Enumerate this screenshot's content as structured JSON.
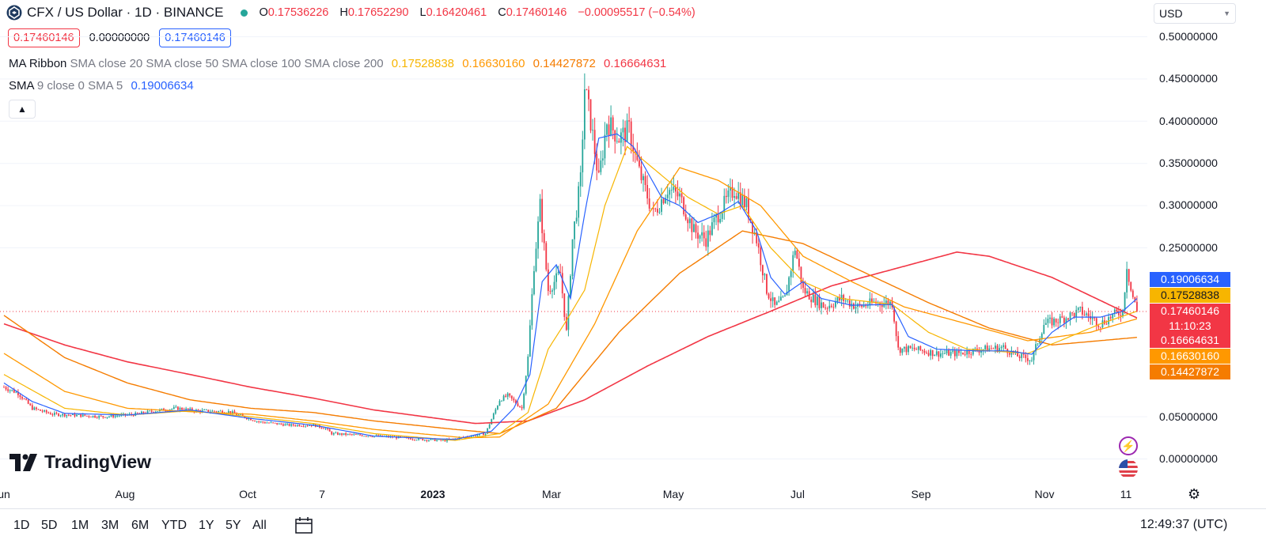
{
  "header": {
    "symbol_title": "CFX / US Dollar · 1D · BINANCE",
    "o_label": "O",
    "o_value": "0.17536226",
    "h_label": "H",
    "h_value": "0.17652290",
    "l_label": "L",
    "l_value": "0.16420461",
    "c_label": "C",
    "c_value": "0.17460146",
    "change": "−0.00095517 (−0.54%)"
  },
  "price_boxes": {
    "sell": "0.17460146",
    "spread": "0.00000000",
    "buy": "0.17460146"
  },
  "indicators": [
    {
      "name": "MA Ribbon",
      "params": "SMA close 20 SMA close 50 SMA close 100 SMA close 200",
      "values": [
        "0.17528838",
        "0.16630160",
        "0.14427872",
        "0.16664631"
      ]
    },
    {
      "name": "SMA",
      "params": "9 close 0 SMA 5",
      "values": [
        "0.19006634"
      ]
    }
  ],
  "currency_select": "USD",
  "y_axis": {
    "ticks": [
      "0.50000000",
      "0.45000000",
      "0.40000000",
      "0.35000000",
      "0.30000000",
      "0.25000000",
      "0.05000000",
      "0.00000000"
    ]
  },
  "x_axis": {
    "labels": [
      "un",
      "Aug",
      "Oct",
      "7",
      "2023",
      "Mar",
      "May",
      "Jul",
      "Sep",
      "Nov",
      "11"
    ]
  },
  "price_badges": {
    "sma9": "0.19006634",
    "ma20": "0.17528838",
    "last": "0.17460146",
    "countdown": "11:10:23",
    "ma200": "0.16664631",
    "ma50": "0.16630160",
    "ma100": "0.14427872"
  },
  "brand": "TradingView",
  "bottom_bar": {
    "ranges": [
      "1D",
      "5D",
      "1M",
      "3M",
      "6M",
      "YTD",
      "1Y",
      "5Y",
      "All"
    ],
    "clock": "12:49:37 (UTC)"
  },
  "colors": {
    "up": "#26a69a",
    "down": "#f23645",
    "sma9": "#2962ff",
    "ma20": "#f7b500",
    "ma50": "#ff9800",
    "ma100": "#f57c00",
    "ma200": "#f23645"
  },
  "chart_data": {
    "type": "candlestick",
    "x_start": "2022-06-01",
    "ylim": [
      -0.02,
      0.5
    ],
    "close_anchors": [
      [
        "2022-06-01",
        0.085
      ],
      [
        "2022-06-08",
        0.078
      ],
      [
        "2022-06-15",
        0.06
      ],
      [
        "2022-06-25",
        0.053
      ],
      [
        "2022-07-05",
        0.052
      ],
      [
        "2022-07-20",
        0.05
      ],
      [
        "2022-08-05",
        0.053
      ],
      [
        "2022-08-15",
        0.057
      ],
      [
        "2022-08-25",
        0.06
      ],
      [
        "2022-09-05",
        0.057
      ],
      [
        "2022-09-20",
        0.056
      ],
      [
        "2022-10-05",
        0.044
      ],
      [
        "2022-10-20",
        0.04
      ],
      [
        "2022-11-01",
        0.04
      ],
      [
        "2022-11-07",
        0.036
      ],
      [
        "2022-11-10",
        0.03
      ],
      [
        "2022-11-25",
        0.028
      ],
      [
        "2022-12-10",
        0.026
      ],
      [
        "2022-12-25",
        0.023
      ],
      [
        "2023-01-05",
        0.022
      ],
      [
        "2023-01-15",
        0.026
      ],
      [
        "2023-01-25",
        0.03
      ],
      [
        "2023-02-01",
        0.07
      ],
      [
        "2023-02-05",
        0.075
      ],
      [
        "2023-02-12",
        0.06
      ],
      [
        "2023-02-15",
        0.12
      ],
      [
        "2023-02-18",
        0.23
      ],
      [
        "2023-02-21",
        0.3
      ],
      [
        "2023-02-25",
        0.2
      ],
      [
        "2023-03-03",
        0.22
      ],
      [
        "2023-03-06",
        0.15
      ],
      [
        "2023-03-09",
        0.26
      ],
      [
        "2023-03-13",
        0.33
      ],
      [
        "2023-03-15",
        0.44
      ],
      [
        "2023-03-18",
        0.4
      ],
      [
        "2023-03-22",
        0.33
      ],
      [
        "2023-03-26",
        0.4
      ],
      [
        "2023-04-01",
        0.38
      ],
      [
        "2023-04-06",
        0.39
      ],
      [
        "2023-04-11",
        0.34
      ],
      [
        "2023-04-18",
        0.29
      ],
      [
        "2023-04-25",
        0.32
      ],
      [
        "2023-05-01",
        0.31
      ],
      [
        "2023-05-08",
        0.27
      ],
      [
        "2023-05-14",
        0.26
      ],
      [
        "2023-05-20",
        0.29
      ],
      [
        "2023-05-28",
        0.32
      ],
      [
        "2023-06-03",
        0.3
      ],
      [
        "2023-06-08",
        0.26
      ],
      [
        "2023-06-13",
        0.2
      ],
      [
        "2023-06-17",
        0.18
      ],
      [
        "2023-06-22",
        0.19
      ],
      [
        "2023-06-27",
        0.25
      ],
      [
        "2023-07-01",
        0.2
      ],
      [
        "2023-07-06",
        0.19
      ],
      [
        "2023-07-12",
        0.18
      ],
      [
        "2023-07-20",
        0.19
      ],
      [
        "2023-07-28",
        0.18
      ],
      [
        "2023-08-05",
        0.185
      ],
      [
        "2023-08-14",
        0.185
      ],
      [
        "2023-08-17",
        0.13
      ],
      [
        "2023-08-25",
        0.13
      ],
      [
        "2023-09-05",
        0.125
      ],
      [
        "2023-09-15",
        0.125
      ],
      [
        "2023-09-28",
        0.13
      ],
      [
        "2023-10-08",
        0.132
      ],
      [
        "2023-10-15",
        0.122
      ],
      [
        "2023-10-22",
        0.118
      ],
      [
        "2023-10-28",
        0.16
      ],
      [
        "2023-11-05",
        0.165
      ],
      [
        "2023-11-15",
        0.175
      ],
      [
        "2023-11-25",
        0.16
      ],
      [
        "2023-12-01",
        0.17
      ],
      [
        "2023-12-06",
        0.175
      ],
      [
        "2023-12-08",
        0.23
      ],
      [
        "2023-12-10",
        0.2
      ],
      [
        "2023-12-13",
        0.175
      ]
    ],
    "sma9_anchors": [
      [
        "2022-06-01",
        0.09
      ],
      [
        "2022-06-15",
        0.068
      ],
      [
        "2022-07-01",
        0.054
      ],
      [
        "2022-08-01",
        0.052
      ],
      [
        "2022-09-01",
        0.058
      ],
      [
        "2022-10-01",
        0.048
      ],
      [
        "2022-11-01",
        0.04
      ],
      [
        "2022-12-01",
        0.027
      ],
      [
        "2023-01-10",
        0.023
      ],
      [
        "2023-01-28",
        0.033
      ],
      [
        "2023-02-08",
        0.06
      ],
      [
        "2023-02-16",
        0.1
      ],
      [
        "2023-02-22",
        0.21
      ],
      [
        "2023-03-01",
        0.23
      ],
      [
        "2023-03-08",
        0.19
      ],
      [
        "2023-03-15",
        0.29
      ],
      [
        "2023-03-22",
        0.38
      ],
      [
        "2023-03-31",
        0.385
      ],
      [
        "2023-04-08",
        0.37
      ],
      [
        "2023-04-15",
        0.34
      ],
      [
        "2023-04-22",
        0.31
      ],
      [
        "2023-05-01",
        0.3
      ],
      [
        "2023-05-10",
        0.28
      ],
      [
        "2023-05-20",
        0.29
      ],
      [
        "2023-05-30",
        0.305
      ],
      [
        "2023-06-08",
        0.27
      ],
      [
        "2023-06-15",
        0.215
      ],
      [
        "2023-06-22",
        0.195
      ],
      [
        "2023-07-01",
        0.21
      ],
      [
        "2023-07-10",
        0.19
      ],
      [
        "2023-07-25",
        0.182
      ],
      [
        "2023-08-14",
        0.183
      ],
      [
        "2023-08-22",
        0.145
      ],
      [
        "2023-09-05",
        0.13
      ],
      [
        "2023-09-25",
        0.128
      ],
      [
        "2023-10-10",
        0.128
      ],
      [
        "2023-10-22",
        0.124
      ],
      [
        "2023-11-01",
        0.15
      ],
      [
        "2023-11-12",
        0.168
      ],
      [
        "2023-11-25",
        0.168
      ],
      [
        "2023-12-06",
        0.175
      ],
      [
        "2023-12-13",
        0.19
      ]
    ],
    "ma20_anchors": [
      [
        "2022-06-01",
        0.1
      ],
      [
        "2022-07-01",
        0.06
      ],
      [
        "2022-08-01",
        0.052
      ],
      [
        "2022-09-01",
        0.057
      ],
      [
        "2022-10-01",
        0.05
      ],
      [
        "2022-11-01",
        0.042
      ],
      [
        "2022-12-01",
        0.03
      ],
      [
        "2023-01-10",
        0.022
      ],
      [
        "2023-02-01",
        0.03
      ],
      [
        "2023-02-15",
        0.055
      ],
      [
        "2023-02-25",
        0.13
      ],
      [
        "2023-03-05",
        0.16
      ],
      [
        "2023-03-15",
        0.2
      ],
      [
        "2023-03-25",
        0.3
      ],
      [
        "2023-04-05",
        0.37
      ],
      [
        "2023-04-20",
        0.34
      ],
      [
        "2023-05-05",
        0.31
      ],
      [
        "2023-05-20",
        0.29
      ],
      [
        "2023-06-01",
        0.3
      ],
      [
        "2023-06-15",
        0.25
      ],
      [
        "2023-07-01",
        0.21
      ],
      [
        "2023-07-20",
        0.19
      ],
      [
        "2023-08-14",
        0.183
      ],
      [
        "2023-09-01",
        0.15
      ],
      [
        "2023-09-20",
        0.13
      ],
      [
        "2023-10-20",
        0.125
      ],
      [
        "2023-11-05",
        0.14
      ],
      [
        "2023-11-25",
        0.16
      ],
      [
        "2023-12-13",
        0.175
      ]
    ],
    "ma50_anchors": [
      [
        "2022-06-01",
        0.125
      ],
      [
        "2022-07-01",
        0.08
      ],
      [
        "2022-08-01",
        0.06
      ],
      [
        "2022-09-01",
        0.056
      ],
      [
        "2022-10-01",
        0.053
      ],
      [
        "2022-11-01",
        0.045
      ],
      [
        "2022-12-01",
        0.035
      ],
      [
        "2023-01-15",
        0.025
      ],
      [
        "2023-02-01",
        0.026
      ],
      [
        "2023-02-25",
        0.065
      ],
      [
        "2023-03-20",
        0.16
      ],
      [
        "2023-04-10",
        0.27
      ],
      [
        "2023-05-01",
        0.345
      ],
      [
        "2023-05-20",
        0.33
      ],
      [
        "2023-06-10",
        0.3
      ],
      [
        "2023-07-01",
        0.24
      ],
      [
        "2023-07-25",
        0.21
      ],
      [
        "2023-08-20",
        0.18
      ],
      [
        "2023-09-20",
        0.16
      ],
      [
        "2023-10-20",
        0.14
      ],
      [
        "2023-11-20",
        0.15
      ],
      [
        "2023-12-13",
        0.166
      ]
    ],
    "ma100_anchors": [
      [
        "2022-06-01",
        0.17
      ],
      [
        "2022-07-01",
        0.12
      ],
      [
        "2022-08-01",
        0.09
      ],
      [
        "2022-09-01",
        0.07
      ],
      [
        "2022-10-01",
        0.06
      ],
      [
        "2022-11-01",
        0.055
      ],
      [
        "2022-12-01",
        0.045
      ],
      [
        "2023-01-10",
        0.035
      ],
      [
        "2023-02-01",
        0.03
      ],
      [
        "2023-03-01",
        0.06
      ],
      [
        "2023-04-01",
        0.15
      ],
      [
        "2023-05-01",
        0.22
      ],
      [
        "2023-06-01",
        0.27
      ],
      [
        "2023-07-01",
        0.255
      ],
      [
        "2023-08-01",
        0.22
      ],
      [
        "2023-09-01",
        0.185
      ],
      [
        "2023-10-01",
        0.155
      ],
      [
        "2023-11-01",
        0.135
      ],
      [
        "2023-12-13",
        0.144
      ]
    ],
    "ma200_anchors": [
      [
        "2022-06-01",
        0.16
      ],
      [
        "2022-07-01",
        0.135
      ],
      [
        "2022-08-01",
        0.115
      ],
      [
        "2022-09-01",
        0.1
      ],
      [
        "2022-10-01",
        0.085
      ],
      [
        "2022-11-01",
        0.072
      ],
      [
        "2022-12-01",
        0.058
      ],
      [
        "2023-01-20",
        0.042
      ],
      [
        "2023-02-15",
        0.045
      ],
      [
        "2023-03-15",
        0.07
      ],
      [
        "2023-04-15",
        0.11
      ],
      [
        "2023-05-15",
        0.145
      ],
      [
        "2023-06-15",
        0.175
      ],
      [
        "2023-07-15",
        0.205
      ],
      [
        "2023-08-15",
        0.225
      ],
      [
        "2023-09-15",
        0.245
      ],
      [
        "2023-10-01",
        0.24
      ],
      [
        "2023-11-01",
        0.215
      ],
      [
        "2023-12-13",
        0.167
      ]
    ]
  }
}
